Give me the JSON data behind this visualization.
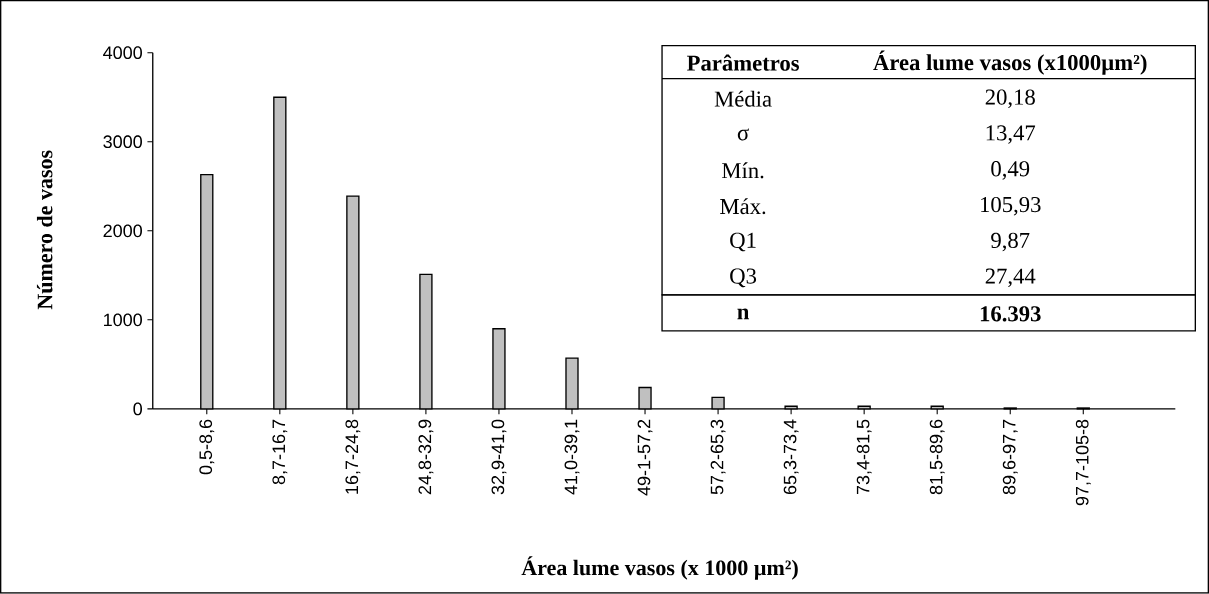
{
  "chart_data": {
    "type": "bar",
    "xlabel": "Área lume vasos (x 1000 µm²)",
    "ylabel": "Número de vasos",
    "categories": [
      "0,5-8,6",
      "8,7-16,7",
      "16,7-24,8",
      "24,8-32,9",
      "32,9-41,0",
      "41,0-39,1",
      "49-1-57,2",
      "57,2-65,3",
      "65,3-73,4",
      "73,4-81,5",
      "81,5-89,6",
      "89,6-97,7",
      "97,7-105-8"
    ],
    "values": [
      2630,
      3500,
      2390,
      1510,
      900,
      570,
      240,
      130,
      30,
      30,
      30,
      10,
      10
    ],
    "color": "#c0c0c0",
    "ylim": [
      0,
      4000
    ],
    "yticks": [
      0,
      1000,
      2000,
      3000,
      4000
    ],
    "annotations": [
      "Parâmetros",
      "Área lume vasos (x1000µm²)",
      "Média",
      "20,18",
      "σ",
      "13,47",
      "Mín.",
      "0,49",
      "Máx.",
      "105,93",
      "Q1",
      "9,87",
      "Q3",
      "27,44",
      "n",
      "16.393"
    ]
  }
}
